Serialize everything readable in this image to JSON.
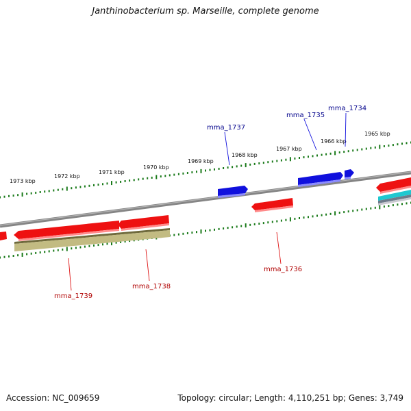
{
  "title": "Janthinobacterium sp. Marseille, complete genome",
  "footer": {
    "accession": "Accession: NC_009659",
    "summary": "Topology: circular; Length: 4,110,251 bp; Genes: 3,749"
  },
  "colors": {
    "forward_strand": "#1010dd",
    "reverse_strand": "#ee1111",
    "rna_feature": "#c2bb82",
    "backbone": "#858585",
    "ticks": "#1a7a1a",
    "label_forward": "#00008b",
    "label_reverse": "#b00000",
    "cyan_feature": "#20c8d0"
  },
  "kbp_labels": [
    "1973 kbp",
    "1972 kbp",
    "1971 kbp",
    "1970 kbp",
    "1969 kbp",
    "1968 kbp",
    "1967 kbp",
    "1966 kbp",
    "1965 kbp"
  ],
  "gene_labels": {
    "mma_1734": "mma_1734",
    "mma_1735": "mma_1735",
    "mma_1736": "mma_1736",
    "mma_1737": "mma_1737",
    "mma_1738": "mma_1738",
    "mma_1739": "mma_1739"
  }
}
